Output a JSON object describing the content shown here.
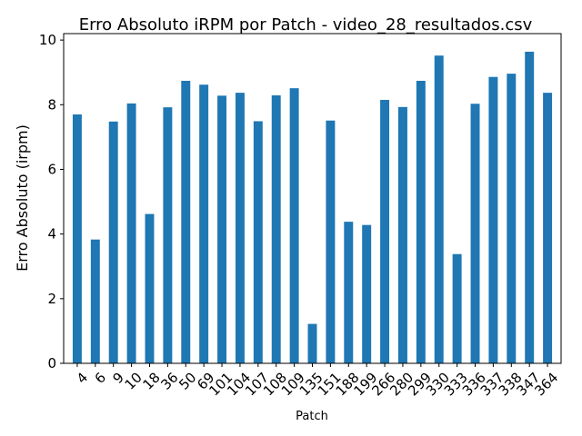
{
  "chart_data": {
    "type": "bar",
    "title": "Erro Absoluto iRPM por Patch - video_28_resultados.csv",
    "xlabel": "Patch",
    "ylabel": "Erro Absoluto (irpm)",
    "ylim": [
      0,
      10.2
    ],
    "yticks": [
      "0",
      "2",
      "4",
      "6",
      "8",
      "10"
    ],
    "grid": false,
    "bar_color": "#1f77b4",
    "categories": [
      "4",
      "6",
      "9",
      "10",
      "18",
      "36",
      "50",
      "69",
      "101",
      "104",
      "107",
      "108",
      "109",
      "135",
      "151",
      "188",
      "199",
      "266",
      "280",
      "299",
      "330",
      "333",
      "336",
      "337",
      "338",
      "347",
      "364"
    ],
    "values": [
      7.7,
      3.83,
      7.48,
      8.04,
      4.62,
      7.92,
      8.74,
      8.62,
      8.28,
      8.37,
      7.49,
      8.29,
      8.51,
      1.22,
      7.51,
      4.38,
      4.28,
      8.15,
      7.93,
      8.74,
      9.52,
      3.38,
      8.03,
      8.86,
      8.96,
      9.64,
      8.37
    ]
  }
}
